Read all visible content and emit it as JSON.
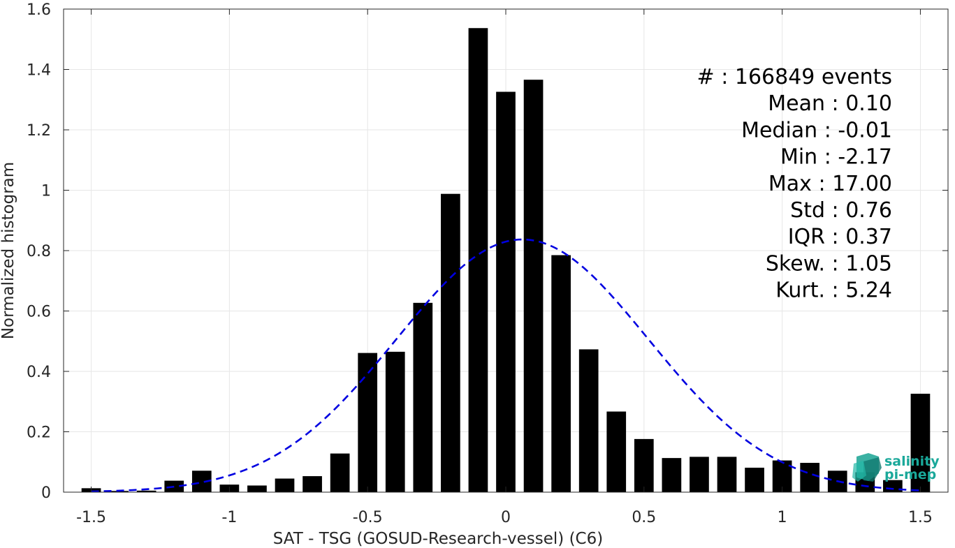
{
  "chart_data": {
    "type": "bar",
    "xlabel": "SAT - TSG (GOSUD-Research-vessel) (C6)",
    "ylabel": "Normalized histogram",
    "xlim": [
      -1.6,
      1.6
    ],
    "ylim": [
      0,
      1.6
    ],
    "xticks": [
      -1.5,
      -1,
      -0.5,
      0,
      0.5,
      1,
      1.5
    ],
    "xtick_labels": [
      "-1.5",
      "-1",
      "-0.5",
      "0",
      "0.5",
      "1",
      "1.5"
    ],
    "yticks": [
      0,
      0.2,
      0.4,
      0.6,
      0.8,
      1,
      1.2,
      1.4,
      1.6
    ],
    "ytick_labels": [
      "0",
      "0.2",
      "0.4",
      "0.6",
      "0.8",
      "1",
      "1.2",
      "1.4",
      "1.6"
    ],
    "grid": true,
    "bar_color": "#000000",
    "bar_width": 0.07,
    "bins": [
      -1.5,
      -1.4,
      -1.3,
      -1.2,
      -1.1,
      -1.0,
      -0.9,
      -0.8,
      -0.7,
      -0.6,
      -0.5,
      -0.4,
      -0.3,
      -0.2,
      -0.1,
      0.0,
      0.1,
      0.2,
      0.3,
      0.4,
      0.5,
      0.6,
      0.7,
      0.8,
      0.9,
      1.0,
      1.1,
      1.2,
      1.3,
      1.4,
      1.5
    ],
    "values": [
      0.013,
      0.004,
      0.005,
      0.038,
      0.071,
      0.025,
      0.022,
      0.045,
      0.053,
      0.128,
      0.461,
      0.465,
      0.627,
      0.988,
      1.537,
      1.326,
      1.366,
      0.785,
      0.473,
      0.267,
      0.176,
      0.113,
      0.117,
      0.117,
      0.081,
      0.105,
      0.097,
      0.071,
      0.066,
      0.04,
      0.326
    ],
    "fit_curve": {
      "type": "normal",
      "mean": 0.06,
      "std": 0.455,
      "peak": 0.837,
      "color": "#0000e0",
      "style": "dashed",
      "x_range": [
        -1.5,
        1.5
      ]
    },
    "stats": [
      {
        "label": "#  : 166849 events"
      },
      {
        "label": "Mean : 0.10"
      },
      {
        "label": "Median : -0.01"
      },
      {
        "label": "Min : -2.17"
      },
      {
        "label": "Max : 17.00"
      },
      {
        "label": "Std : 0.76"
      },
      {
        "label": "IQR : 0.37"
      },
      {
        "label": "Skew. : 1.05"
      },
      {
        "label": "Kurt. : 5.24"
      }
    ]
  },
  "logo": {
    "line1": "salinity",
    "line2": "pi-mep",
    "color": "#1aa89a"
  }
}
